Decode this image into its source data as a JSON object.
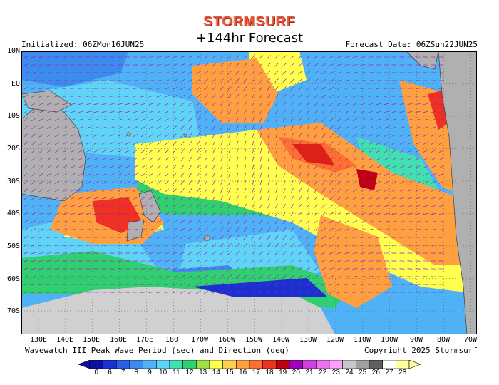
{
  "header": {
    "brand": "STORMSURF",
    "title": "+144hr Forecast",
    "initialized": "Initialized: 06ZMon16JUN25",
    "forecast_date": "Forecast Date: 06ZSun22JUN25"
  },
  "axes": {
    "lat_labels": [
      "10N",
      "EQ",
      "10S",
      "20S",
      "30S",
      "40S",
      "50S",
      "60S",
      "70S"
    ],
    "lon_labels": [
      "130E",
      "140E",
      "150E",
      "160E",
      "170E",
      "180",
      "170W",
      "160W",
      "150W",
      "140W",
      "130W",
      "120W",
      "110W",
      "100W",
      "90W",
      "80W",
      "70W"
    ]
  },
  "footer": {
    "description": "Wavewatch III Peak Wave Period (sec) and Direction (deg)",
    "copyright": "Copyright 2025 Stormsurf"
  },
  "legend": {
    "values": [
      "0",
      "6",
      "7",
      "8",
      "9",
      "10",
      "11",
      "12",
      "13",
      "14",
      "15",
      "16",
      "17",
      "18",
      "19",
      "20",
      "21",
      "22",
      "23",
      "24",
      "25",
      "26",
      "27",
      "28"
    ],
    "colors": [
      "#1010a0",
      "#1a30d0",
      "#2a60e8",
      "#3c8cf0",
      "#4fb2f7",
      "#60d4f7",
      "#40e0b0",
      "#30d070",
      "#a0e040",
      "#ffff50",
      "#ffd050",
      "#ffa040",
      "#ff7030",
      "#f03020",
      "#c00010",
      "#a000c0",
      "#d040e0",
      "#f070f0",
      "#ffa0ff",
      "#c8c8c8",
      "#a0a0a0",
      "#606060",
      "#ffffff",
      "#ffffa0"
    ]
  },
  "map_colors": {
    "land": "#b0b0b0",
    "ice": "#d0d0d0",
    "ocean_base": "#4fb2f7"
  }
}
